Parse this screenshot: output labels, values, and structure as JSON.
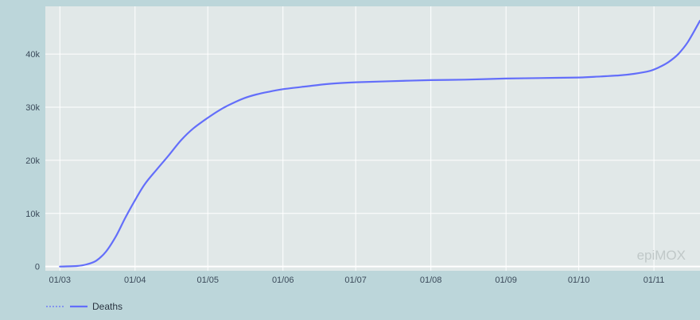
{
  "chart_data": {
    "type": "line",
    "title": "",
    "xlabel": "",
    "ylabel": "",
    "x_ticks": [
      "01/03",
      "01/04",
      "01/05",
      "01/06",
      "01/07",
      "01/08",
      "01/09",
      "01/10",
      "01/11"
    ],
    "y_ticks": [
      "0",
      "10k",
      "20k",
      "30k",
      "40k"
    ],
    "ylim": [
      -800,
      49000
    ],
    "xlim": [
      "2020-02-24",
      "2020-11-20"
    ],
    "grid": true,
    "legend_position": "bottom-left",
    "series": [
      {
        "name": "Deaths",
        "color": "#636efa",
        "x": [
          "2020-03-01",
          "2020-03-08",
          "2020-03-12",
          "2020-03-16",
          "2020-03-20",
          "2020-03-24",
          "2020-03-28",
          "2020-04-01",
          "2020-04-05",
          "2020-04-10",
          "2020-04-15",
          "2020-04-20",
          "2020-04-25",
          "2020-05-01",
          "2020-05-06",
          "2020-05-11",
          "2020-05-16",
          "2020-05-21",
          "2020-05-26",
          "2020-06-01",
          "2020-06-10",
          "2020-06-20",
          "2020-07-01",
          "2020-07-15",
          "2020-08-01",
          "2020-08-15",
          "2020-09-01",
          "2020-09-15",
          "2020-10-01",
          "2020-10-10",
          "2020-10-18",
          "2020-10-24",
          "2020-10-30",
          "2020-11-03",
          "2020-11-07",
          "2020-11-11",
          "2020-11-15",
          "2020-11-20"
        ],
        "values": [
          0,
          100,
          400,
          1100,
          2800,
          5600,
          9200,
          12500,
          15500,
          18300,
          21000,
          23800,
          26000,
          28000,
          29500,
          30700,
          31700,
          32400,
          32900,
          33400,
          33900,
          34400,
          34700,
          34900,
          35100,
          35200,
          35400,
          35500,
          35600,
          35800,
          36000,
          36300,
          36800,
          37500,
          38500,
          40000,
          42300,
          46300
        ]
      }
    ]
  },
  "watermark": "epiMOX",
  "legend": {
    "items": [
      {
        "label": "",
        "color": "#636efa",
        "style": "dotted"
      },
      {
        "label": "Deaths",
        "color": "#636efa",
        "style": "solid"
      }
    ]
  }
}
